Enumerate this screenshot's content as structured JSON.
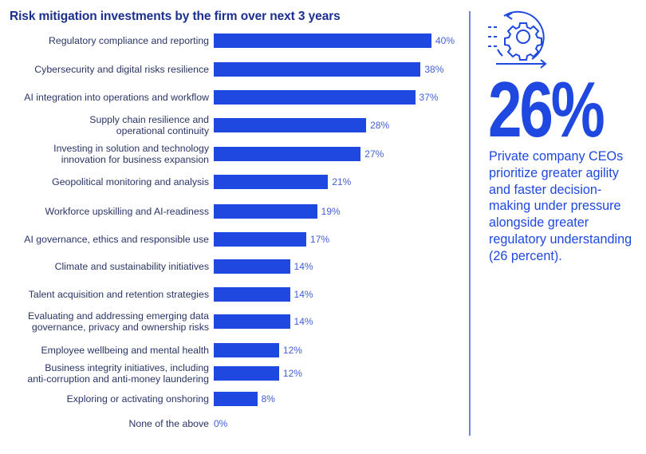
{
  "chart_data": {
    "type": "bar",
    "orientation": "horizontal",
    "title": "Risk mitigation investments by the firm over next 3 years",
    "categories": [
      "Regulatory compliance and reporting",
      "Cybersecurity and digital risks resilience",
      "AI integration into operations and workflow",
      "Supply chain resilience and\noperational continuity",
      "Investing in solution and technology\ninnovation for business expansion",
      "Geopolitical monitoring and analysis",
      "Workforce upskilling and AI-readiness",
      "AI governance, ethics and responsible use",
      "Climate and sustainability initiatives",
      "Talent acquisition and retention strategies",
      "Evaluating and addressing emerging data\ngovernance, privacy and ownership risks",
      "Employee wellbeing and mental health",
      "Business integrity initiatives, including\nanti-corruption and anti-money laundering",
      "Exploring or activating onshoring",
      "None of the above"
    ],
    "values": [
      40,
      38,
      37,
      28,
      27,
      21,
      19,
      17,
      14,
      14,
      14,
      12,
      12,
      8,
      0
    ],
    "value_labels": [
      "40%",
      "38%",
      "37%",
      "28%",
      "27%",
      "21%",
      "19%",
      "17%",
      "14%",
      "14%",
      "14%",
      "12%",
      "12%",
      "8%",
      "0%"
    ],
    "unit": "%",
    "bar_color": "#1f48e0",
    "grid": false
  },
  "callout": {
    "stat": "26%",
    "text": "Private company CEOs prioritize greater agility and faster decision-making under pressure alongside greater regulatory understanding (26 percent).",
    "icon": "gear-cycle-icon",
    "color": "#1f48e0"
  }
}
